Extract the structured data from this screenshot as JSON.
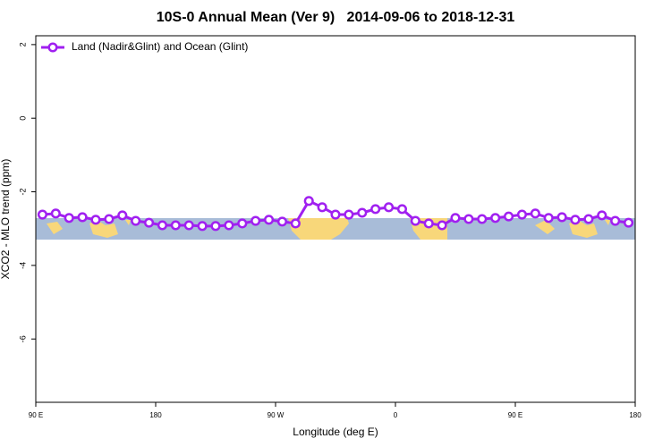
{
  "chart_data": {
    "type": "line",
    "title": "10S-0 Annual Mean (Ver 9)   2014-09-06 to 2018-12-31",
    "xlabel": "Longitude (deg E)",
    "ylabel": "XCO2 - MLO trend (ppm)",
    "x": [
      95,
      105,
      115,
      125,
      135,
      145,
      155,
      165,
      175,
      185,
      195,
      205,
      215,
      225,
      235,
      245,
      255,
      265,
      275,
      285,
      295,
      305,
      315,
      325,
      335,
      345,
      355,
      365,
      375,
      385,
      395,
      405,
      415,
      425,
      435,
      445,
      455,
      465,
      475,
      485,
      495,
      505,
      515,
      525,
      535
    ],
    "series": [
      {
        "name": "Land (Nadir&Glint) and Ocean (Glint)",
        "color": "#a020f0",
        "values": [
          -2.62,
          -2.59,
          -2.71,
          -2.69,
          -2.76,
          -2.74,
          -2.64,
          -2.79,
          -2.84,
          -2.91,
          -2.91,
          -2.91,
          -2.93,
          -2.93,
          -2.91,
          -2.86,
          -2.79,
          -2.76,
          -2.81,
          -2.86,
          -2.25,
          -2.42,
          -2.62,
          -2.62,
          -2.57,
          -2.47,
          -2.42,
          -2.47,
          -2.79,
          -2.86,
          -2.91,
          -2.71,
          -2.74,
          -2.74,
          -2.71,
          -2.67,
          -2.62,
          -2.59,
          -2.71,
          -2.69,
          -2.76,
          -2.74,
          -2.64,
          -2.79,
          -2.84
        ]
      }
    ],
    "xlim": [
      90,
      540
    ],
    "xticks": [
      {
        "value": 90,
        "label": "90 E"
      },
      {
        "value": 180,
        "label": "180"
      },
      {
        "value": 270,
        "label": "90 W"
      },
      {
        "value": 360,
        "label": "0"
      },
      {
        "value": 450,
        "label": "90 E"
      },
      {
        "value": 540,
        "label": "180"
      }
    ],
    "ylim": [
      -7.72,
      2.24
    ],
    "yticks": [
      2,
      0,
      -2,
      -4,
      -6
    ],
    "legend": "top-left"
  }
}
